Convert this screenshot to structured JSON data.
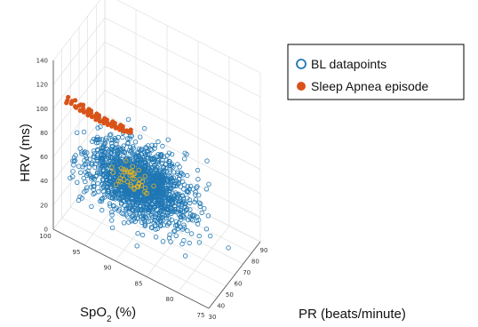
{
  "chart_data": {
    "type": "scatter",
    "projection": "3d",
    "grid": true,
    "legend_position": "top-right",
    "axes": {
      "x": {
        "label": "PR (beats/minute)",
        "range": [
          30,
          90
        ],
        "ticks": [
          "30",
          "40",
          "50",
          "60",
          "70",
          "80",
          "90"
        ]
      },
      "y": {
        "label_main": "SpO",
        "label_sub": "2",
        "label_unit": " (%)",
        "range": [
          75,
          100
        ],
        "ticks": [
          "75",
          "80",
          "85",
          "90",
          "95",
          "100"
        ]
      },
      "z": {
        "label": "HRV (ms)",
        "range": [
          0,
          140
        ],
        "ticks": [
          "0",
          "20",
          "40",
          "60",
          "80",
          "100",
          "120",
          "140"
        ]
      }
    },
    "series": [
      {
        "name": "BL datapoints",
        "marker": "open-circle",
        "color": "#1f77b4",
        "center": {
          "pr": 58,
          "spo2": 90,
          "hrv": 38
        },
        "spread": {
          "pr": 9,
          "spo2": 3.8,
          "hrv": 12
        },
        "count": 1700
      },
      {
        "name": "Sleep Apnea episode",
        "marker": "filled-circle",
        "color": "#d95319",
        "points": [
          [
            38,
            99,
            100
          ],
          [
            39,
            99,
            101
          ],
          [
            40,
            98.5,
            99
          ],
          [
            40,
            99,
            103
          ],
          [
            41,
            98,
            97
          ],
          [
            41,
            98.5,
            100
          ],
          [
            42,
            98,
            95
          ],
          [
            42,
            97.5,
            98
          ],
          [
            43,
            97.5,
            93
          ],
          [
            43,
            97,
            96
          ],
          [
            44,
            97,
            92
          ],
          [
            44,
            96.5,
            94
          ],
          [
            45,
            96.5,
            90
          ],
          [
            45,
            96,
            93
          ],
          [
            46,
            96,
            89
          ],
          [
            46,
            95.5,
            91
          ],
          [
            47,
            95.5,
            87
          ],
          [
            47,
            95,
            90
          ],
          [
            48,
            95,
            86
          ],
          [
            48,
            94.5,
            88
          ],
          [
            49,
            94.5,
            85
          ],
          [
            49,
            94,
            87
          ],
          [
            50,
            94,
            84
          ],
          [
            50,
            93.5,
            86
          ],
          [
            51,
            93.5,
            83
          ],
          [
            51,
            93,
            85
          ],
          [
            52,
            93,
            82
          ],
          [
            52,
            92.5,
            84
          ],
          [
            53,
            92.5,
            81
          ],
          [
            53,
            92,
            83
          ],
          [
            54,
            92,
            80
          ],
          [
            54,
            91.5,
            82
          ],
          [
            55,
            91.5,
            80
          ],
          [
            55,
            91,
            81
          ],
          [
            41,
            98,
            102
          ],
          [
            43,
            97,
            99
          ],
          [
            45,
            96,
            95
          ],
          [
            47,
            95,
            92
          ],
          [
            49,
            94,
            89
          ],
          [
            51,
            93,
            87
          ],
          [
            53,
            92,
            85
          ],
          [
            55,
            91,
            83
          ],
          [
            44,
            97.5,
            97
          ],
          [
            46,
            96.5,
            94
          ],
          [
            48,
            95.5,
            91
          ],
          [
            50,
            94.5,
            88
          ],
          [
            52,
            93.5,
            86
          ],
          [
            54,
            92.5,
            84
          ]
        ]
      },
      {
        "name": "",
        "marker": "open-circle",
        "color": "#e6b422",
        "center": {
          "pr": 57,
          "spo2": 91,
          "hrv": 40
        },
        "spread": {
          "pr": 2.5,
          "spo2": 1.2,
          "hrv": 5
        },
        "count": 45
      }
    ]
  }
}
